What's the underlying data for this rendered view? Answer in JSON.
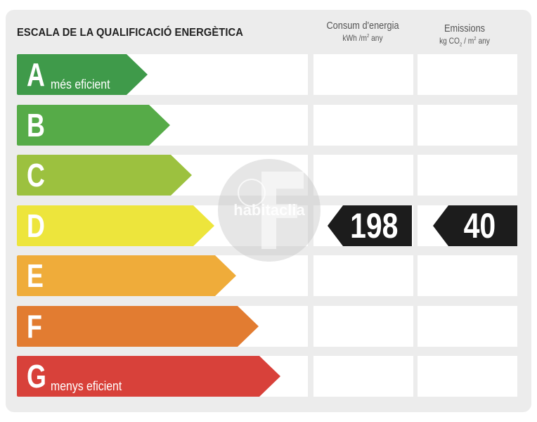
{
  "label": {
    "title": "ESCALA DE LA QUALIFICACIÓ ENERGÈTICA",
    "consum_header": "Consum d'energia",
    "consum_unit_prefix": "kWh /m",
    "consum_unit_sup": "2",
    "consum_unit_suffix": " any",
    "emissions_header": "Emissions",
    "emissions_unit_prefix": "kg CO",
    "emissions_unit_sub": "2",
    "emissions_unit_mid": " / m",
    "emissions_unit_sup": "2",
    "emissions_unit_suffix": " any",
    "watermark": "habitaclia"
  },
  "ratings": [
    {
      "letter": "A",
      "desc": "més eficient",
      "color": "#3f9a4a"
    },
    {
      "letter": "B",
      "desc": "",
      "color": "#56ab48"
    },
    {
      "letter": "C",
      "desc": "",
      "color": "#9cc13f"
    },
    {
      "letter": "D",
      "desc": "",
      "color": "#ede53c"
    },
    {
      "letter": "E",
      "desc": "",
      "color": "#efac3a"
    },
    {
      "letter": "F",
      "desc": "",
      "color": "#e27c31"
    },
    {
      "letter": "G",
      "desc": "menys eficient",
      "color": "#d8413a"
    }
  ],
  "current": {
    "rating": "D",
    "consum_value": "198",
    "emissions_value": "40"
  }
}
